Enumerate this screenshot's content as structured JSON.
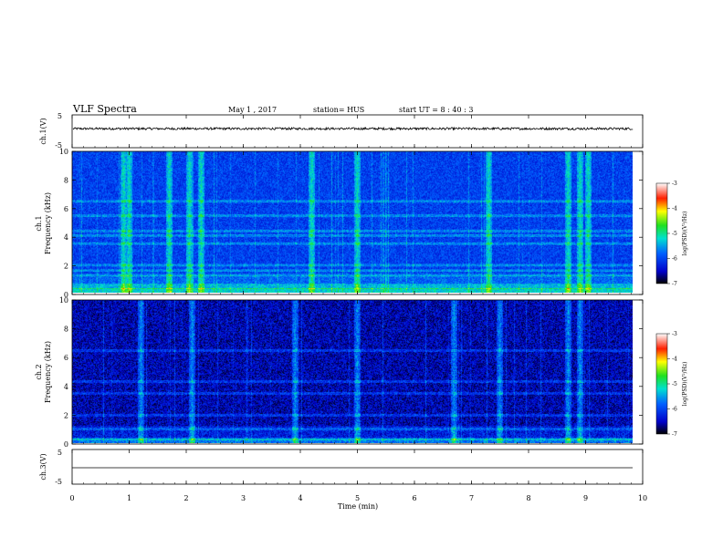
{
  "header": {
    "title": "VLF Spectra",
    "date": "May 1 , 2017",
    "station": "station= HUS",
    "start": "start  UT =  8 : 40 : 3"
  },
  "chart_data": [
    {
      "type": "line",
      "panel": "ch1-waveform",
      "ylabel": "ch.1(V)",
      "ylim": [
        -5,
        5
      ],
      "yticks": [
        "5",
        "-5"
      ],
      "series": [
        {
          "baseline": 0.8,
          "noise_amplitude": 0.35
        }
      ]
    },
    {
      "type": "heatmap",
      "panel": "ch1-spectrogram",
      "ylabel": "ch.1\nFrequency (kHz)",
      "ylim": [
        0,
        10
      ],
      "yticks": [
        "0",
        "2",
        "4",
        "6",
        "8",
        "10"
      ],
      "colorbar": {
        "label": "log(PSD)(V²/Hz)",
        "range": [
          -7,
          -3
        ],
        "ticks": [
          "-3",
          "-4",
          "-5",
          "-6",
          "-7"
        ]
      },
      "bright_vertical_bursts_min": [
        0.9,
        1.0,
        1.7,
        2.05,
        2.25,
        4.2,
        5.0,
        7.3,
        8.7,
        8.9,
        9.05
      ],
      "horizontal_bands_khz": [
        0.4,
        0.6,
        1.3,
        1.6,
        2.0,
        3.5,
        4.1,
        4.4,
        5.5,
        6.5
      ]
    },
    {
      "type": "heatmap",
      "panel": "ch2-spectrogram",
      "ylabel": "ch.2\nFrequency (kHz)",
      "ylim": [
        0,
        10
      ],
      "yticks": [
        "0",
        "2",
        "4",
        "6",
        "8",
        "10"
      ],
      "colorbar": {
        "label": "log(PSD)(V²/Hz)",
        "range": [
          -7,
          -3
        ],
        "ticks": [
          "-3",
          "-4",
          "-5",
          "-6",
          "-7"
        ]
      },
      "bright_vertical_bursts_min": [
        1.2,
        2.1,
        3.9,
        5.0,
        6.7,
        7.5,
        8.7,
        8.9
      ],
      "horizontal_bands_khz": [
        0.3,
        1.0,
        2.0,
        3.5,
        4.3,
        6.5
      ]
    },
    {
      "type": "line",
      "panel": "ch3-waveform",
      "ylabel": "ch.3(V)",
      "ylim": [
        -5,
        5
      ],
      "yticks": [
        "5",
        "-5"
      ],
      "series": [
        {
          "baseline": 0.0,
          "noise_amplitude": 0.0
        }
      ]
    }
  ],
  "xaxis": {
    "label": "Time (min)",
    "range": [
      0,
      10
    ],
    "ticks": [
      "0",
      "1",
      "2",
      "3",
      "4",
      "5",
      "6",
      "7",
      "8",
      "9",
      "10"
    ],
    "data_end": 9.83
  }
}
